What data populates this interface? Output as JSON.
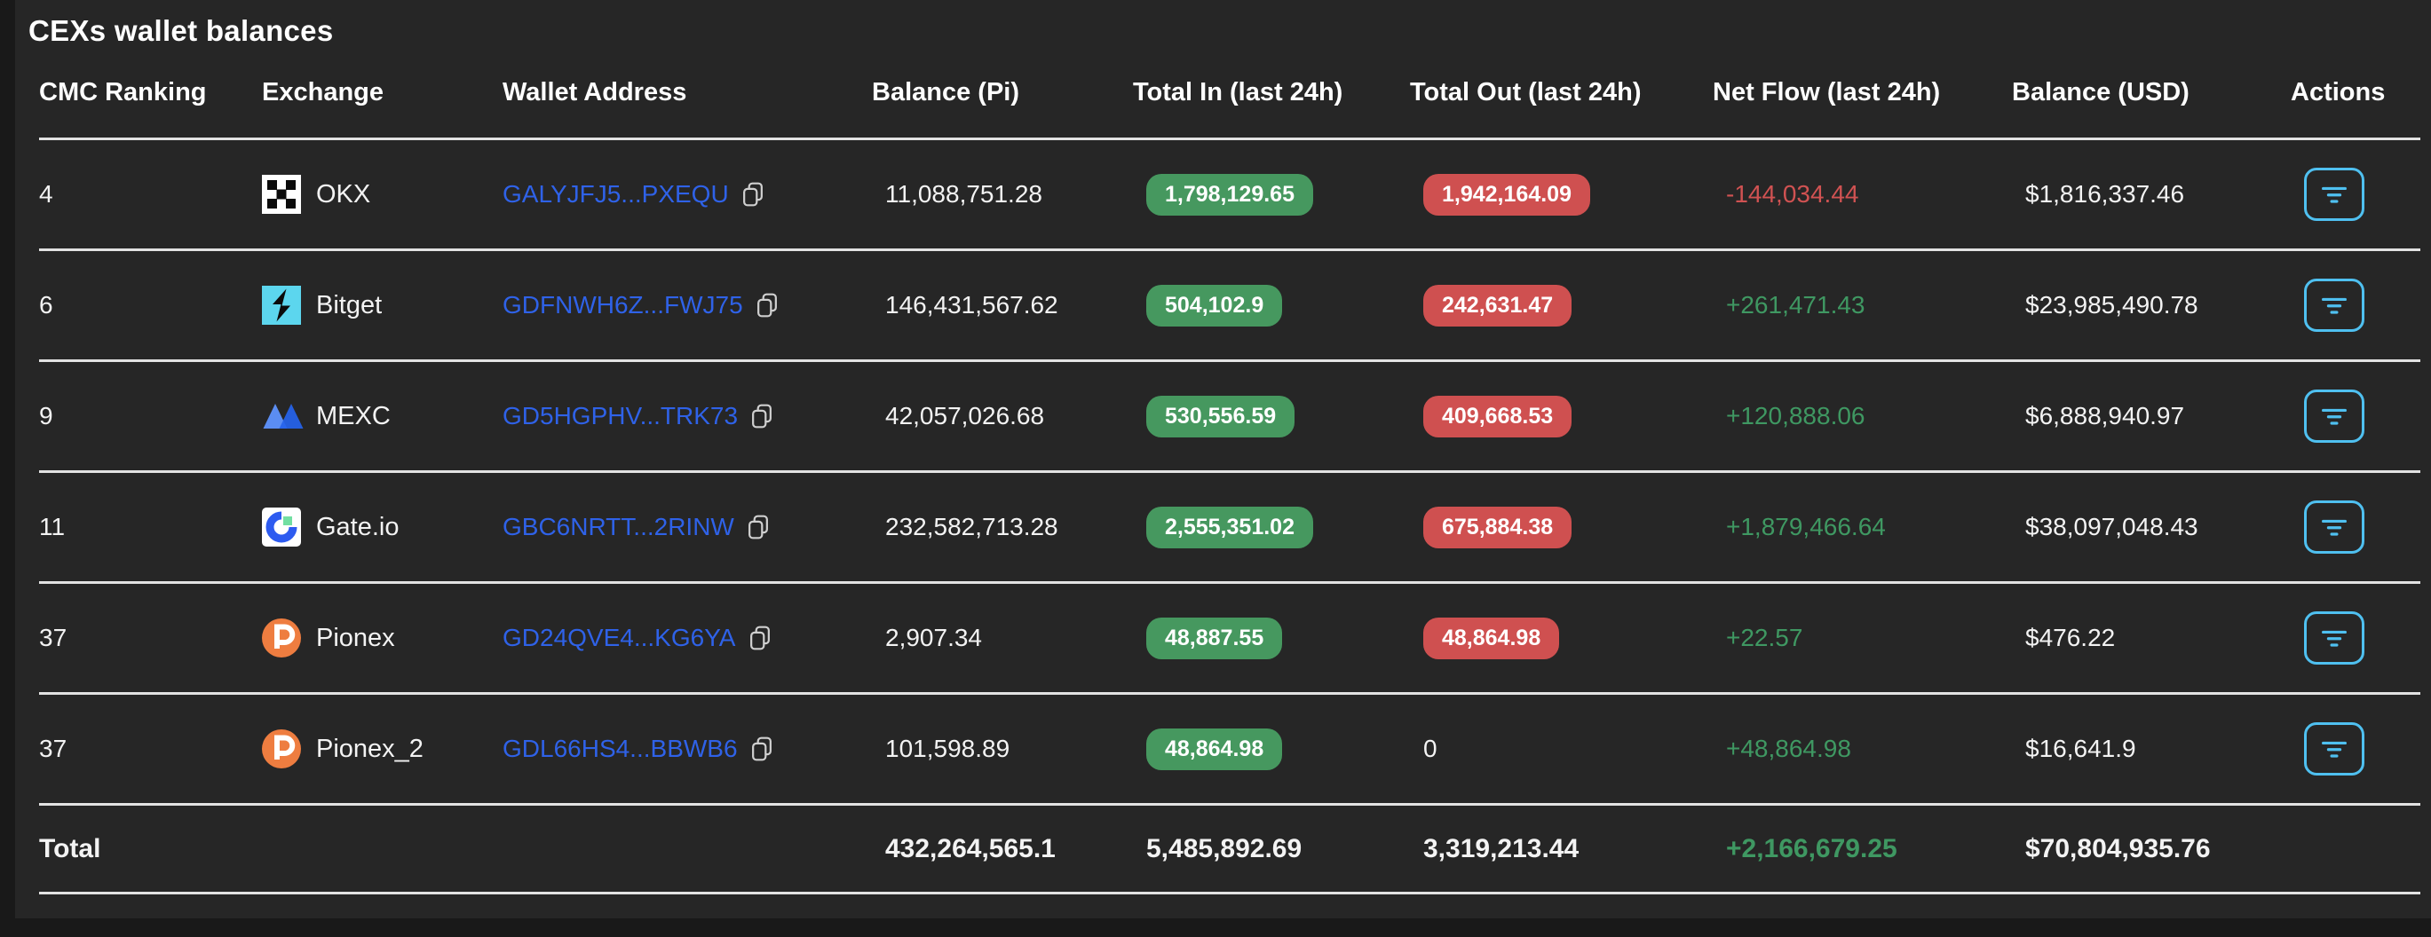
{
  "page": {
    "title": "CEXs wallet balances"
  },
  "colors": {
    "page_background": "#191919",
    "card_background": "#262626",
    "divider": "#e2e2e2",
    "link_blue": "#2f62e8",
    "badge_green": "#46985f",
    "badge_red": "#cf5050",
    "net_flow_positive": "#3f9862",
    "net_flow_negative": "#d05252",
    "action_button_cyan": "#4fc0f0",
    "bitget_cyan": "#5cd6ee",
    "pionex_orange": "#ee7d40",
    "mexc_blue": "#2563eb",
    "gate_blue": "#2d5bf0",
    "gate_green": "#72dfa2"
  },
  "table": {
    "columns": [
      "CMC Ranking",
      "Exchange",
      "Wallet Address",
      "Balance (Pi)",
      "Total In (last 24h)",
      "Total Out (last 24h)",
      "Net Flow (last 24h)",
      "Balance (USD)",
      "Actions"
    ],
    "rows": [
      {
        "rank": "4",
        "exchange": "OKX",
        "logo": "okx-logo",
        "wallet_address": "GALYJFJ5...PXEQU",
        "balance_pi": "11,088,751.28",
        "total_in": "1,798,129.65",
        "total_out": "1,942,164.09",
        "total_out_display": "badge",
        "net_flow": "-144,034.44",
        "net_flow_direction": "negative",
        "balance_usd": "$1,816,337.46"
      },
      {
        "rank": "6",
        "exchange": "Bitget",
        "logo": "bitget-logo",
        "wallet_address": "GDFNWH6Z...FWJ75",
        "balance_pi": "146,431,567.62",
        "total_in": "504,102.9",
        "total_out": "242,631.47",
        "total_out_display": "badge",
        "net_flow": "+261,471.43",
        "net_flow_direction": "positive",
        "balance_usd": "$23,985,490.78"
      },
      {
        "rank": "9",
        "exchange": "MEXC",
        "logo": "mexc-logo",
        "wallet_address": "GD5HGPHV...TRK73",
        "balance_pi": "42,057,026.68",
        "total_in": "530,556.59",
        "total_out": "409,668.53",
        "total_out_display": "badge",
        "net_flow": "+120,888.06",
        "net_flow_direction": "positive",
        "balance_usd": "$6,888,940.97"
      },
      {
        "rank": "11",
        "exchange": "Gate.io",
        "logo": "gate-logo",
        "wallet_address": "GBC6NRTT...2RINW",
        "balance_pi": "232,582,713.28",
        "total_in": "2,555,351.02",
        "total_out": "675,884.38",
        "total_out_display": "badge",
        "net_flow": "+1,879,466.64",
        "net_flow_direction": "positive",
        "balance_usd": "$38,097,048.43"
      },
      {
        "rank": "37",
        "exchange": "Pionex",
        "logo": "pionex-logo",
        "wallet_address": "GD24QVE4...KG6YA",
        "balance_pi": "2,907.34",
        "total_in": "48,887.55",
        "total_out": "48,864.98",
        "total_out_display": "badge",
        "net_flow": "+22.57",
        "net_flow_direction": "positive",
        "balance_usd": "$476.22"
      },
      {
        "rank": "37",
        "exchange": "Pionex_2",
        "logo": "pionex-logo",
        "wallet_address": "GDL66HS4...BBWB6",
        "balance_pi": "101,598.89",
        "total_in": "48,864.98",
        "total_out": "0",
        "total_out_display": "plain",
        "net_flow": "+48,864.98",
        "net_flow_direction": "positive",
        "balance_usd": "$16,641.9"
      }
    ],
    "total_row": {
      "label": "Total",
      "balance_pi": "432,264,565.1",
      "total_in": "5,485,892.69",
      "total_out": "3,319,213.44",
      "net_flow": "+2,166,679.25",
      "net_flow_direction": "positive",
      "balance_usd": "$70,804,935.76"
    }
  }
}
